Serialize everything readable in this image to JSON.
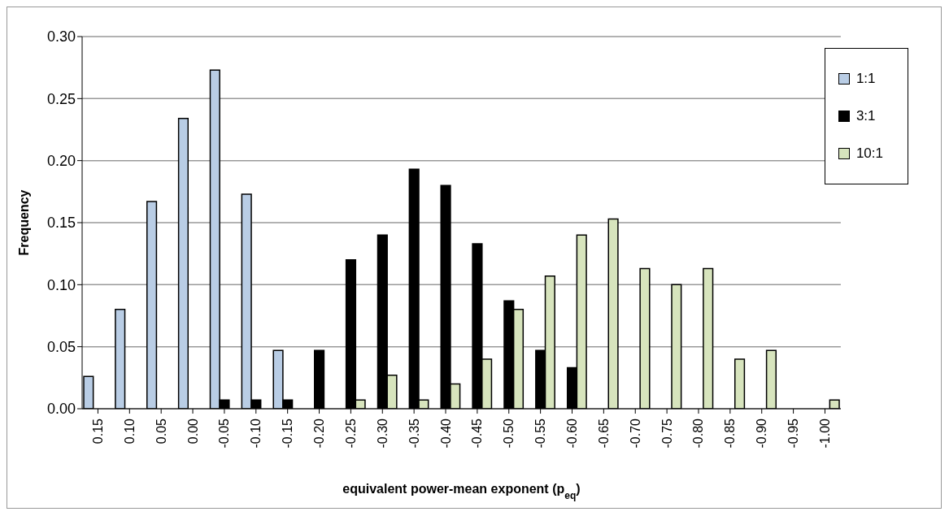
{
  "chart_data": {
    "type": "bar",
    "xlabel": "equivalent power-mean exponent (p$_{eq}$)",
    "ylabel": "Frequency",
    "categories": [
      "0.15",
      "0.10",
      "0.05",
      "0.00",
      "-0.05",
      "-0.10",
      "-0.15",
      "-0.20",
      "-0.25",
      "-0.30",
      "-0.35",
      "-0.40",
      "-0.45",
      "-0.50",
      "-0.55",
      "-0.60",
      "-0.65",
      "-0.70",
      "-0.75",
      "-0.80",
      "-0.85",
      "-0.90",
      "-0.95",
      "-1.00"
    ],
    "series": [
      {
        "name": "1:1",
        "color": "#b9cde5",
        "values": [
          0.026,
          0.08,
          0.167,
          0.234,
          0.273,
          0.173,
          0.047,
          0,
          0,
          0,
          0,
          0,
          0,
          0,
          0,
          0,
          0,
          0,
          0,
          0,
          0,
          0,
          0,
          0
        ]
      },
      {
        "name": "3:1",
        "color": "#000000",
        "values": [
          0,
          0,
          0,
          0,
          0.007,
          0.007,
          0.007,
          0.047,
          0.12,
          0.14,
          0.193,
          0.18,
          0.133,
          0.087,
          0.047,
          0.033,
          0,
          0,
          0,
          0,
          0,
          0,
          0,
          0
        ]
      },
      {
        "name": "10:1",
        "color": "#d7e4bd",
        "values": [
          0,
          0,
          0,
          0,
          0,
          0,
          0,
          0,
          0.007,
          0.027,
          0.007,
          0.02,
          0.04,
          0.08,
          0.107,
          0.14,
          0.153,
          0.113,
          0.1,
          0.113,
          0.04,
          0.047,
          0,
          0.007
        ]
      }
    ],
    "ylim": [
      0,
      0.3
    ],
    "yticks": [
      {
        "value": 0,
        "label": "0.00"
      },
      {
        "value": 0.05,
        "label": "0.05"
      },
      {
        "value": 0.1,
        "label": "0.10"
      },
      {
        "value": 0.15,
        "label": "0.15"
      },
      {
        "value": 0.2,
        "label": "0.20"
      },
      {
        "value": 0.25,
        "label": "0.25"
      },
      {
        "value": 0.3,
        "label": "0.30"
      }
    ],
    "grid": "y",
    "legend": "top right"
  }
}
